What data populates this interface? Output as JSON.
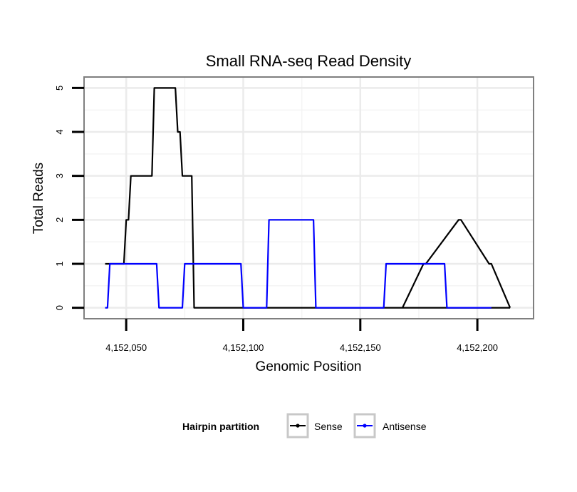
{
  "chart_data": {
    "type": "line",
    "title": "Small RNA-seq Read Density",
    "xlabel": "Genomic Position",
    "ylabel": "Total Reads",
    "xlim": [
      4152032,
      4152224
    ],
    "ylim": [
      -0.25,
      5.25
    ],
    "x_ticks": [
      {
        "value": 4152050,
        "label": "4,152,050"
      },
      {
        "value": 4152100,
        "label": "4,152,100"
      },
      {
        "value": 4152150,
        "label": "4,152,150"
      },
      {
        "value": 4152200,
        "label": "4,152,200"
      }
    ],
    "y_ticks": [
      {
        "value": 0,
        "label": "0"
      },
      {
        "value": 1,
        "label": "1"
      },
      {
        "value": 2,
        "label": "2"
      },
      {
        "value": 3,
        "label": "3"
      },
      {
        "value": 4,
        "label": "4"
      },
      {
        "value": 5,
        "label": "5"
      }
    ],
    "grid": true,
    "legend": {
      "title": "Hairpin partition",
      "position": "bottom"
    },
    "series": [
      {
        "name": "Sense",
        "color": "#000000",
        "x": [
          4152041,
          4152049,
          4152050,
          4152051,
          4152052,
          4152061,
          4152062,
          4152071,
          4152072,
          4152073,
          4152074,
          4152078,
          4152079,
          4152214
        ],
        "y": [
          1,
          1,
          2,
          2,
          3,
          3,
          5,
          5,
          4,
          4,
          3,
          3,
          0,
          0
        ]
      },
      {
        "name": "Sense",
        "color": "#000000",
        "x": [
          4152168,
          4152177,
          4152178,
          4152192,
          4152193,
          4152205,
          4152206,
          4152214
        ],
        "y": [
          0,
          1,
          1,
          2,
          2,
          1,
          1,
          0
        ]
      },
      {
        "name": "Antisense",
        "color": "#0000ff",
        "x": [
          4152041,
          4152042,
          4152043,
          4152063,
          4152064,
          4152074,
          4152075,
          4152099,
          4152100,
          4152110,
          4152111,
          4152130,
          4152131,
          4152160,
          4152161,
          4152186,
          4152187,
          4152206
        ],
        "y": [
          0,
          0,
          1,
          1,
          0,
          0,
          1,
          1,
          0,
          0,
          2,
          2,
          0,
          0,
          1,
          1,
          0,
          0
        ]
      }
    ]
  }
}
